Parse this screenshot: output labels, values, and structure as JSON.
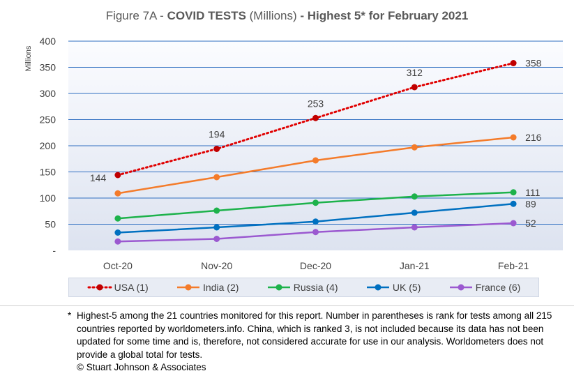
{
  "title": {
    "prefix": "Figure 7A - ",
    "bold1": "COVID TESTS",
    "normal": " (Millions) ",
    "bold2": "- Highest 5* for February 2021"
  },
  "footnote": {
    "star": "*",
    "text": "Highest-5 among the 21 countries monitored for this report. Number in parentheses is rank for tests among all 215 countries reported by worldometers.info. China, which is ranked 3, is not included because its data has not been updated for some time and is, therefore, not considered accurate for use in our analysis. Worldometers does not provide a global total for tests.",
    "copyright": "© Stuart Johnson & Associates"
  },
  "chart_data": {
    "type": "line",
    "ylabel": "Millions",
    "xlabel": "",
    "ylim": [
      0,
      400
    ],
    "yticks": [
      0,
      50,
      100,
      150,
      200,
      250,
      300,
      350,
      400
    ],
    "ytick_labels": [
      "-",
      "50",
      "100",
      "150",
      "200",
      "250",
      "300",
      "350",
      "400"
    ],
    "categories": [
      "Oct-20",
      "Nov-20",
      "Dec-20",
      "Jan-21",
      "Feb-21"
    ],
    "grid": true,
    "legend_position": "bottom",
    "series": [
      {
        "name": "USA (1)",
        "values": [
          144,
          194,
          253,
          312,
          358
        ],
        "color": "#e00000",
        "marker": "#c00000",
        "dashed": true,
        "labels": [
          "144",
          "194",
          "253",
          "312",
          "358"
        ]
      },
      {
        "name": "India (2)",
        "values": [
          109,
          140,
          172,
          197,
          216
        ],
        "color": "#f47b2a",
        "labels": [
          "",
          "",
          "",
          "",
          "216"
        ]
      },
      {
        "name": "Russia (4)",
        "values": [
          61,
          76,
          91,
          103,
          111
        ],
        "color": "#1db24b",
        "labels": [
          "",
          "",
          "",
          "",
          "111"
        ]
      },
      {
        "name": "UK (5)",
        "values": [
          34,
          44,
          55,
          72,
          89
        ],
        "color": "#0070c0",
        "labels": [
          "",
          "",
          "",
          "",
          "89"
        ]
      },
      {
        "name": "France (6)",
        "values": [
          17,
          22,
          35,
          44,
          52
        ],
        "color": "#9b59d0",
        "labels": [
          "",
          "",
          "",
          "",
          "52"
        ]
      }
    ]
  }
}
